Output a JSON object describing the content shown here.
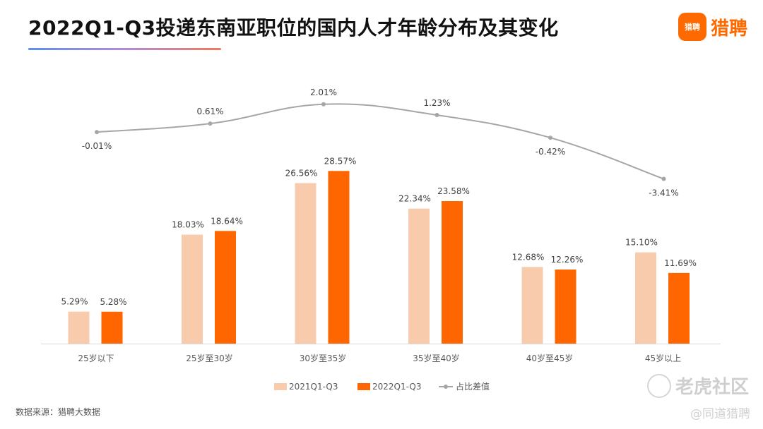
{
  "title": "2022Q1-Q3投递东南亚职位的国内人才年龄分布及其变化",
  "logo": {
    "text": "猎聘",
    "icon_text": "猎聘"
  },
  "source": "数据来源：猎聘大数据",
  "watermark": {
    "text": "老虎社区",
    "sub": "@同道猎聘"
  },
  "colors": {
    "light": "#f8cbad",
    "dark": "#ff6600",
    "line": "#a6a6a6"
  },
  "chart_data": {
    "type": "bar",
    "categories": [
      "25岁以下",
      "25岁至30岁",
      "30岁至35岁",
      "35岁至40岁",
      "40岁至45岁",
      "45岁以上"
    ],
    "series": [
      {
        "name": "2021Q1-Q3",
        "values": [
          5.29,
          18.03,
          26.56,
          22.34,
          12.68,
          15.1
        ],
        "labels": [
          "5.29%",
          "18.03%",
          "26.56%",
          "22.34%",
          "12.68%",
          "15.10%"
        ]
      },
      {
        "name": "2022Q1-Q3",
        "values": [
          5.28,
          18.64,
          28.57,
          23.58,
          12.26,
          11.69
        ],
        "labels": [
          "5.28%",
          "18.64%",
          "28.57%",
          "23.58%",
          "12.26%",
          "11.69%"
        ]
      }
    ],
    "line_series": {
      "name": "占比差值",
      "values": [
        -0.01,
        0.61,
        2.01,
        1.23,
        -0.42,
        -3.41
      ],
      "labels": [
        "-0.01%",
        "0.61%",
        "2.01%",
        "1.23%",
        "-0.42%",
        "-3.41%"
      ]
    },
    "legend_position": "bottom",
    "grid": false
  }
}
